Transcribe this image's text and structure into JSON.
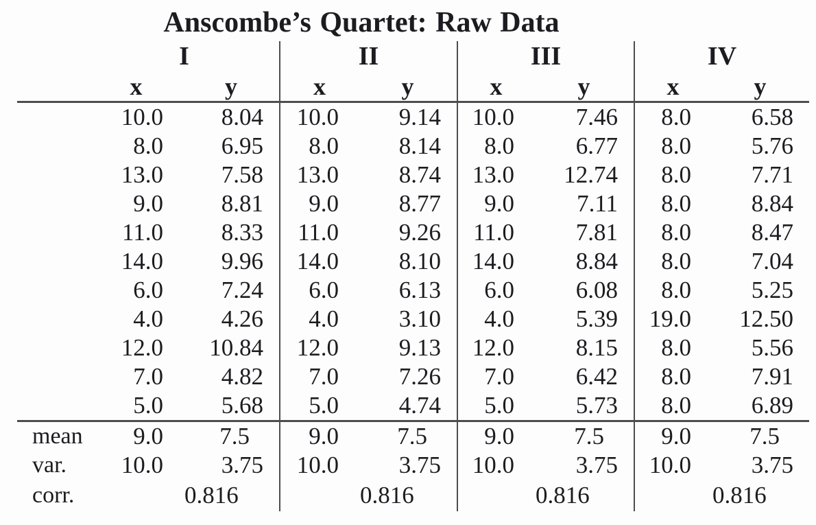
{
  "title": "Anscombe’s Quartet: Raw Data",
  "table": {
    "group_labels": [
      "I",
      "II",
      "III",
      "IV"
    ],
    "x_header": "x",
    "y_header": "y",
    "row_labels": {
      "mean": "mean",
      "var": "var.",
      "corr": "corr."
    },
    "groups": [
      {
        "name": "I",
        "x": [
          "10.0",
          "8.0",
          "13.0",
          "9.0",
          "11.0",
          "14.0",
          "6.0",
          "4.0",
          "12.0",
          "7.0",
          "5.0"
        ],
        "y": [
          "8.04",
          "6.95",
          "7.58",
          "8.81",
          "8.33",
          "9.96",
          "7.24",
          "4.26",
          "10.84",
          "4.82",
          "5.68"
        ],
        "mean_x": "9.0",
        "mean_y": "7.5",
        "var_x": "10.0",
        "var_y": "3.75",
        "corr": "0.816"
      },
      {
        "name": "II",
        "x": [
          "10.0",
          "8.0",
          "13.0",
          "9.0",
          "11.0",
          "14.0",
          "6.0",
          "4.0",
          "12.0",
          "7.0",
          "5.0"
        ],
        "y": [
          "9.14",
          "8.14",
          "8.74",
          "8.77",
          "9.26",
          "8.10",
          "6.13",
          "3.10",
          "9.13",
          "7.26",
          "4.74"
        ],
        "mean_x": "9.0",
        "mean_y": "7.5",
        "var_x": "10.0",
        "var_y": "3.75",
        "corr": "0.816"
      },
      {
        "name": "III",
        "x": [
          "10.0",
          "8.0",
          "13.0",
          "9.0",
          "11.0",
          "14.0",
          "6.0",
          "4.0",
          "12.0",
          "7.0",
          "5.0"
        ],
        "y": [
          "7.46",
          "6.77",
          "12.74",
          "7.11",
          "7.81",
          "8.84",
          "6.08",
          "5.39",
          "8.15",
          "6.42",
          "5.73"
        ],
        "mean_x": "9.0",
        "mean_y": "7.5",
        "var_x": "10.0",
        "var_y": "3.75",
        "corr": "0.816"
      },
      {
        "name": "IV",
        "x": [
          "8.0",
          "8.0",
          "8.0",
          "8.0",
          "8.0",
          "8.0",
          "8.0",
          "19.0",
          "8.0",
          "8.0",
          "8.0"
        ],
        "y": [
          "6.58",
          "5.76",
          "7.71",
          "8.84",
          "8.47",
          "7.04",
          "5.25",
          "12.50",
          "5.56",
          "7.91",
          "6.89"
        ],
        "mean_x": "9.0",
        "mean_y": "7.5",
        "var_x": "10.0",
        "var_y": "3.75",
        "corr": "0.816"
      }
    ]
  },
  "colors": {
    "rule": "#4d4d4d",
    "text": "#1c1c20",
    "background": "#fdfdfd"
  },
  "chart_data": {
    "type": "table",
    "title": "Anscombe's Quartet: Raw Data",
    "categories": [
      "I",
      "II",
      "III",
      "IV"
    ],
    "series": [
      {
        "name": "I",
        "x": [
          10.0,
          8.0,
          13.0,
          9.0,
          11.0,
          14.0,
          6.0,
          4.0,
          12.0,
          7.0,
          5.0
        ],
        "y": [
          8.04,
          6.95,
          7.58,
          8.81,
          8.33,
          9.96,
          7.24,
          4.26,
          10.84,
          4.82,
          5.68
        ],
        "mean_x": 9.0,
        "mean_y": 7.5,
        "var_x": 10.0,
        "var_y": 3.75,
        "corr": 0.816
      },
      {
        "name": "II",
        "x": [
          10.0,
          8.0,
          13.0,
          9.0,
          11.0,
          14.0,
          6.0,
          4.0,
          12.0,
          7.0,
          5.0
        ],
        "y": [
          9.14,
          8.14,
          8.74,
          8.77,
          9.26,
          8.1,
          6.13,
          3.1,
          9.13,
          7.26,
          4.74
        ],
        "mean_x": 9.0,
        "mean_y": 7.5,
        "var_x": 10.0,
        "var_y": 3.75,
        "corr": 0.816
      },
      {
        "name": "III",
        "x": [
          10.0,
          8.0,
          13.0,
          9.0,
          11.0,
          14.0,
          6.0,
          4.0,
          12.0,
          7.0,
          5.0
        ],
        "y": [
          7.46,
          6.77,
          12.74,
          7.11,
          7.81,
          8.84,
          6.08,
          5.39,
          8.15,
          6.42,
          5.73
        ],
        "mean_x": 9.0,
        "mean_y": 7.5,
        "var_x": 10.0,
        "var_y": 3.75,
        "corr": 0.816
      },
      {
        "name": "IV",
        "x": [
          8.0,
          8.0,
          8.0,
          8.0,
          8.0,
          8.0,
          8.0,
          19.0,
          8.0,
          8.0,
          8.0
        ],
        "y": [
          6.58,
          5.76,
          7.71,
          8.84,
          8.47,
          7.04,
          5.25,
          12.5,
          5.56,
          7.91,
          6.89
        ],
        "mean_x": 9.0,
        "mean_y": 7.5,
        "var_x": 10.0,
        "var_y": 3.75,
        "corr": 0.816
      }
    ]
  }
}
